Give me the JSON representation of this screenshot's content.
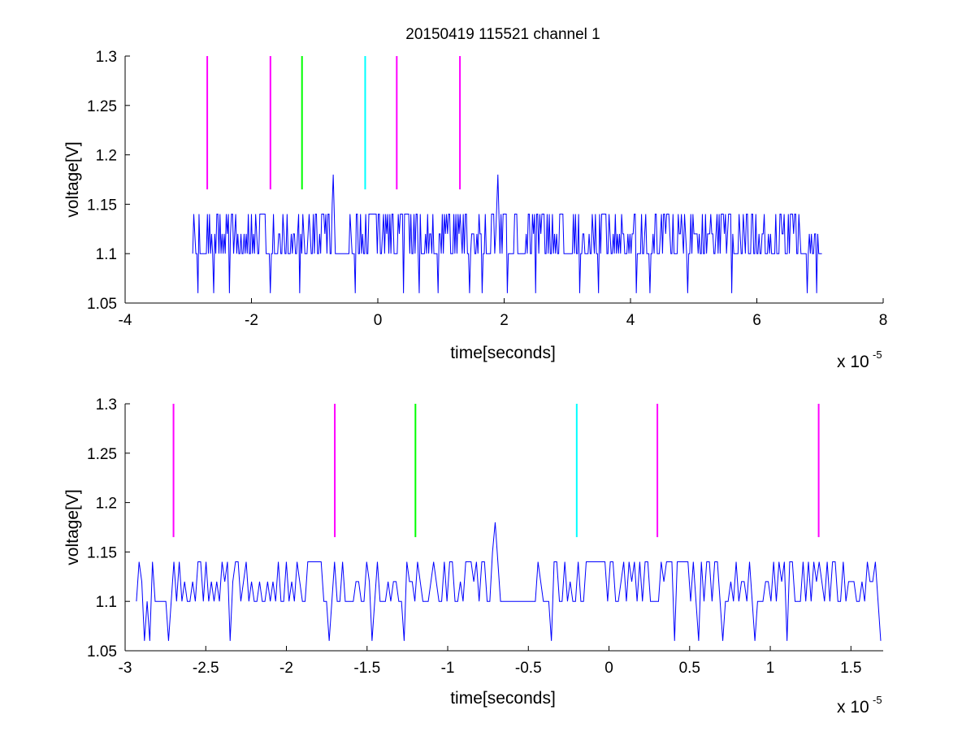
{
  "chart_data": [
    {
      "type": "line",
      "title": "20150419 115521 channel 1",
      "xlabel": "time[seconds]",
      "ylabel": "voltage[V]",
      "x_multiplier": "x 10",
      "x_exponent": "-5",
      "xlim": [
        -4,
        8
      ],
      "ylim": [
        1.05,
        1.3
      ],
      "xticks": [
        -4,
        -2,
        0,
        2,
        4,
        6,
        8
      ],
      "yticks": [
        1.05,
        1.1,
        1.15,
        1.2,
        1.25,
        1.3
      ],
      "xtick_labels": [
        "-4",
        "-2",
        "0",
        "2",
        "4",
        "6",
        "8"
      ],
      "ytick_labels": [
        "1.05",
        "1.1",
        "1.15",
        "1.2",
        "1.25",
        "1.3"
      ],
      "grid": false,
      "series": [
        {
          "color": "#0000ff",
          "x_range": [
            -2.93,
            7.03
          ],
          "baseline": 1.1,
          "levels": [
            1.06,
            1.08,
            1.1,
            1.12,
            1.14
          ],
          "spikes": [
            {
              "x": -0.7,
              "y": 1.18
            },
            {
              "x": 1.9,
              "y": 1.18
            }
          ],
          "dips": [
            -2.85,
            -2.6,
            -2.35,
            -1.7,
            -1.23,
            -0.35,
            0.4,
            0.65,
            0.95,
            1.45,
            1.65,
            2.05,
            2.5,
            3.2,
            3.5,
            4.1,
            4.3,
            4.9,
            5.6,
            6.8,
            6.95
          ]
        }
      ],
      "vlines": [
        {
          "x": -2.7,
          "y0": 1.165,
          "y1": 1.3,
          "color": "#ff00ff"
        },
        {
          "x": -1.7,
          "y0": 1.165,
          "y1": 1.3,
          "color": "#ff00ff"
        },
        {
          "x": -1.2,
          "y0": 1.165,
          "y1": 1.3,
          "color": "#00ff00"
        },
        {
          "x": -0.2,
          "y0": 1.165,
          "y1": 1.3,
          "color": "#00ffff"
        },
        {
          "x": 0.3,
          "y0": 1.165,
          "y1": 1.3,
          "color": "#ff00ff"
        },
        {
          "x": 1.3,
          "y0": 1.165,
          "y1": 1.3,
          "color": "#ff00ff"
        }
      ]
    },
    {
      "type": "line",
      "title": "",
      "xlabel": "time[seconds]",
      "ylabel": "voltage[V]",
      "x_multiplier": "x 10",
      "x_exponent": "-5",
      "xlim": [
        -3,
        1.7
      ],
      "ylim": [
        1.05,
        1.3
      ],
      "xticks": [
        -3,
        -2.5,
        -2,
        -1.5,
        -1,
        -0.5,
        0,
        0.5,
        1,
        1.5
      ],
      "yticks": [
        1.05,
        1.1,
        1.15,
        1.2,
        1.25,
        1.3
      ],
      "xtick_labels": [
        "-3",
        "-2.5",
        "-2",
        "-1.5",
        "-1",
        "-0.5",
        "0",
        "0.5",
        "1",
        "1.5"
      ],
      "ytick_labels": [
        "1.05",
        "1.1",
        "1.15",
        "1.2",
        "1.25",
        "1.3"
      ],
      "grid": false,
      "series": [
        {
          "color": "#0000ff",
          "x_range": [
            -2.93,
            1.7
          ],
          "baseline": 1.1,
          "levels": [
            1.06,
            1.08,
            1.1,
            1.12,
            1.14
          ],
          "spikes": [
            {
              "x": -0.7,
              "y": 1.18
            }
          ],
          "dips": [
            -2.88,
            -2.85,
            -2.73,
            -2.35,
            -1.73,
            -1.47,
            -1.27,
            -0.35,
            0.4,
            0.55,
            0.7,
            0.9,
            1.1,
            1.68
          ]
        }
      ],
      "vlines": [
        {
          "x": -2.7,
          "y0": 1.165,
          "y1": 1.3,
          "color": "#ff00ff"
        },
        {
          "x": -1.7,
          "y0": 1.165,
          "y1": 1.3,
          "color": "#ff00ff"
        },
        {
          "x": -1.2,
          "y0": 1.165,
          "y1": 1.3,
          "color": "#00ff00"
        },
        {
          "x": -0.2,
          "y0": 1.165,
          "y1": 1.3,
          "color": "#00ffff"
        },
        {
          "x": 0.3,
          "y0": 1.165,
          "y1": 1.3,
          "color": "#ff00ff"
        },
        {
          "x": 1.3,
          "y0": 1.165,
          "y1": 1.3,
          "color": "#ff00ff"
        }
      ]
    }
  ]
}
